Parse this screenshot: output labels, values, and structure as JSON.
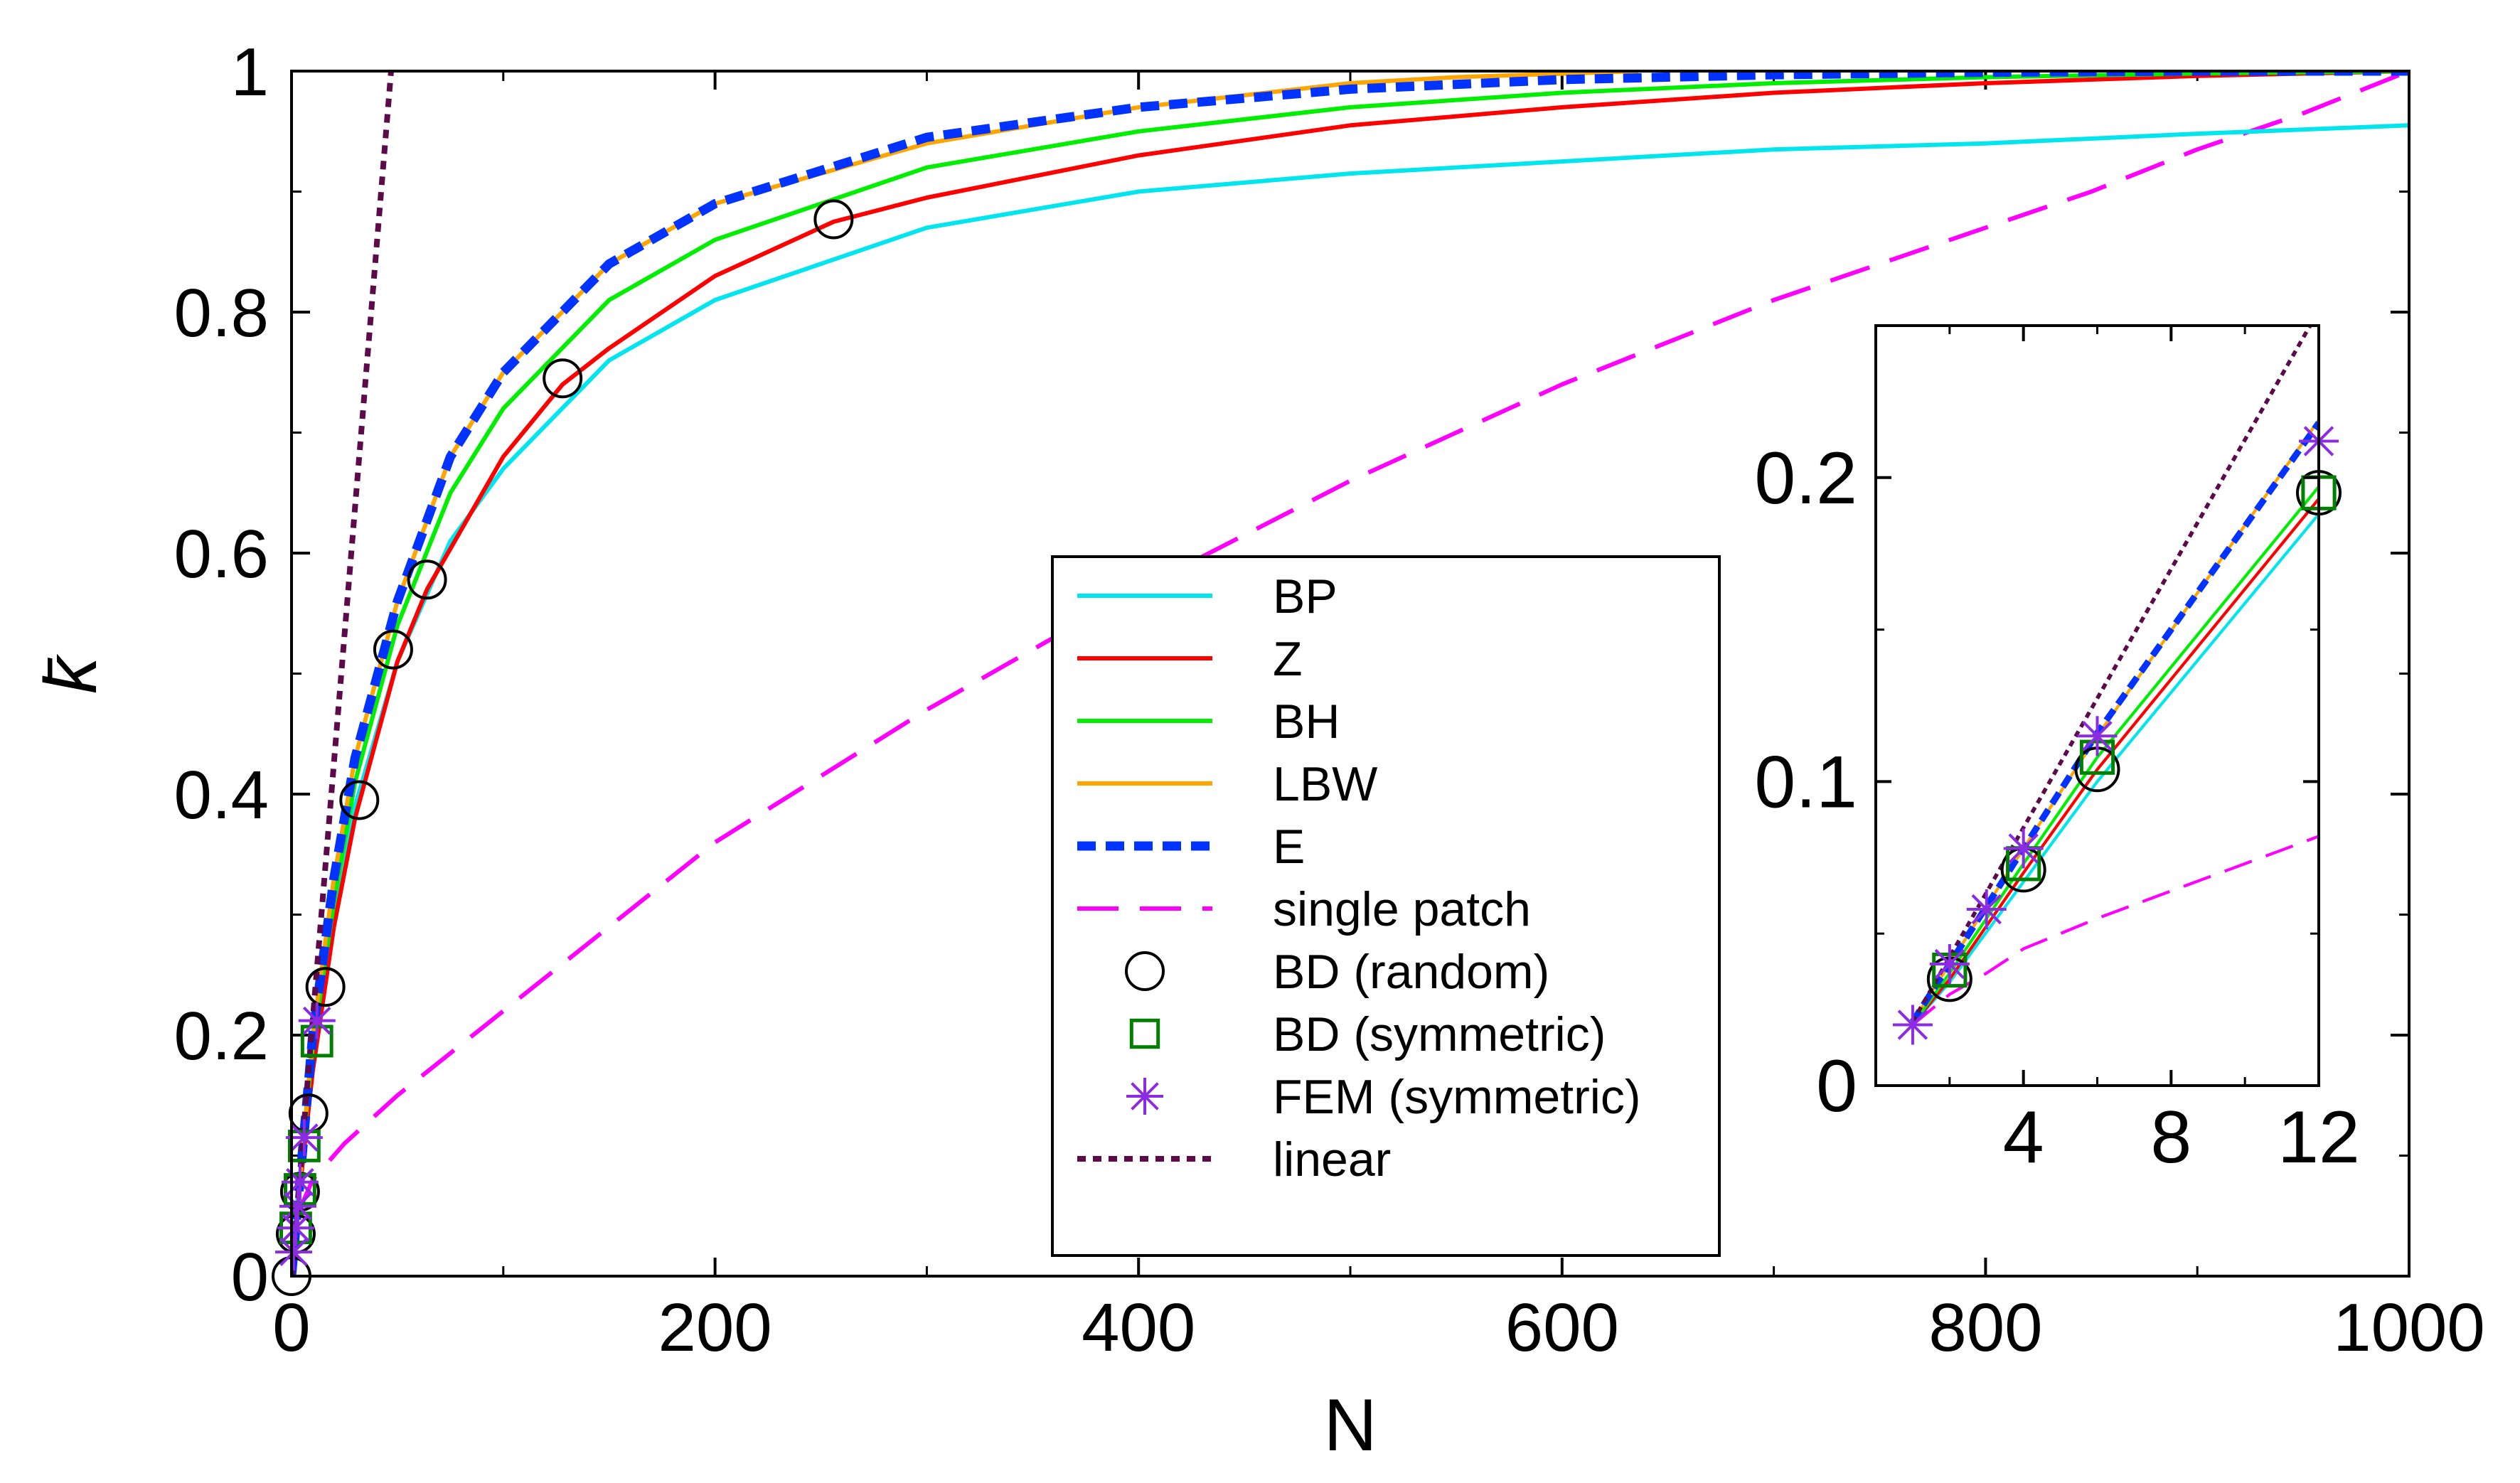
{
  "chart_data": [
    {
      "id": "main",
      "type": "line",
      "xlabel": "N",
      "ylabel": "k̄",
      "xlim": [
        0,
        1000
      ],
      "ylim": [
        0,
        1
      ],
      "xticks": [
        0,
        200,
        400,
        600,
        800,
        1000
      ],
      "yticks": [
        0,
        0.2,
        0.4,
        0.6,
        0.8,
        1
      ],
      "xtick_labels": [
        "0",
        "200",
        "400",
        "600",
        "800",
        "1000"
      ],
      "ytick_labels": [
        "0",
        "0.2",
        "0.4",
        "0.6",
        "0.8",
        "1"
      ],
      "legend_position": "lower-center",
      "series": [
        {
          "name": "BP",
          "style": "solid",
          "color": "#00e5ee",
          "x": [
            0,
            2,
            5,
            10,
            20,
            30,
            50,
            75,
            100,
            150,
            200,
            300,
            400,
            500,
            600,
            700,
            800,
            900,
            1000
          ],
          "y": [
            0,
            0.05,
            0.1,
            0.18,
            0.3,
            0.39,
            0.51,
            0.61,
            0.67,
            0.76,
            0.81,
            0.87,
            0.9,
            0.915,
            0.925,
            0.935,
            0.94,
            0.948,
            0.955
          ]
        },
        {
          "name": "Z",
          "style": "solid",
          "color": "#ff0000",
          "x": [
            0,
            2,
            5,
            10,
            20,
            30,
            50,
            64,
            100,
            128,
            150,
            200,
            256,
            300,
            400,
            500,
            600,
            700,
            800,
            900,
            1000
          ],
          "y": [
            0,
            0.04,
            0.09,
            0.17,
            0.29,
            0.38,
            0.51,
            0.57,
            0.68,
            0.74,
            0.77,
            0.83,
            0.875,
            0.895,
            0.93,
            0.955,
            0.97,
            0.982,
            0.99,
            0.996,
            1.0
          ]
        },
        {
          "name": "BH",
          "style": "solid",
          "color": "#00ee00",
          "x": [
            0,
            2,
            5,
            10,
            20,
            30,
            50,
            75,
            100,
            150,
            200,
            300,
            400,
            500,
            600,
            700,
            800,
            900,
            1000
          ],
          "y": [
            0,
            0.04,
            0.1,
            0.19,
            0.31,
            0.41,
            0.54,
            0.65,
            0.72,
            0.81,
            0.86,
            0.92,
            0.95,
            0.97,
            0.982,
            0.99,
            0.995,
            0.998,
            1.0
          ]
        },
        {
          "name": "LBW",
          "style": "solid",
          "color": "#ffa500",
          "x": [
            0,
            2,
            5,
            10,
            20,
            30,
            50,
            75,
            100,
            150,
            200,
            300,
            400,
            500,
            550,
            636
          ],
          "y": [
            0,
            0.04,
            0.1,
            0.2,
            0.33,
            0.43,
            0.56,
            0.68,
            0.75,
            0.84,
            0.89,
            0.94,
            0.97,
            0.99,
            0.995,
            1.0
          ]
        },
        {
          "name": "E",
          "style": "dashed",
          "color": "#0033ff",
          "x": [
            0,
            2,
            5,
            10,
            20,
            30,
            50,
            75,
            100,
            150,
            200,
            300,
            400,
            500,
            600,
            700,
            800,
            900,
            1000
          ],
          "y": [
            0,
            0.04,
            0.1,
            0.2,
            0.33,
            0.43,
            0.56,
            0.68,
            0.75,
            0.84,
            0.89,
            0.945,
            0.97,
            0.985,
            0.993,
            0.997,
            0.999,
            1.0,
            1.0
          ]
        },
        {
          "name": "single patch",
          "style": "longdash",
          "color": "#ff00ff",
          "x": [
            0,
            2,
            5,
            10,
            25,
            50,
            100,
            150,
            200,
            300,
            400,
            500,
            600,
            700,
            800,
            850,
            900,
            950,
            1000
          ],
          "y": [
            0.0,
            0.03,
            0.06,
            0.08,
            0.11,
            0.15,
            0.22,
            0.29,
            0.36,
            0.47,
            0.57,
            0.66,
            0.74,
            0.81,
            0.87,
            0.9,
            0.935,
            0.965,
            1.0
          ]
        },
        {
          "name": "BD (random)",
          "style": "marker",
          "marker": "circle",
          "color": "#000000",
          "x": [
            0,
            2,
            4,
            8,
            16,
            32,
            48,
            64,
            128,
            256
          ],
          "y": [
            0.0,
            0.035,
            0.07,
            0.135,
            0.24,
            0.395,
            0.52,
            0.578,
            0.745,
            0.877
          ]
        },
        {
          "name": "BD (symmetric)",
          "style": "marker",
          "marker": "square",
          "color": "#007f00",
          "x": [
            2,
            4,
            6,
            12
          ],
          "y": [
            0.04,
            0.072,
            0.108,
            0.195
          ]
        },
        {
          "name": "FEM (symmetric)",
          "style": "marker",
          "marker": "star",
          "color": "#8b2be2",
          "x": [
            1,
            2,
            3,
            4,
            6,
            12
          ],
          "y": [
            0.02,
            0.04,
            0.058,
            0.078,
            0.115,
            0.212
          ]
        },
        {
          "name": "linear",
          "style": "dotted",
          "color": "#5c0a4a",
          "x": [
            0,
            47
          ],
          "y": [
            0,
            1.0
          ]
        }
      ]
    },
    {
      "id": "inset",
      "type": "line",
      "xlim": [
        0,
        12
      ],
      "ylim": [
        0,
        0.25
      ],
      "xticks": [
        4,
        8,
        12
      ],
      "yticks": [
        0,
        0.1,
        0.2
      ],
      "xtick_labels": [
        "4",
        "8",
        "12"
      ],
      "ytick_labels": [
        "0",
        "0.1",
        "0.2"
      ],
      "series": [
        {
          "name": "BP",
          "x": [
            1,
            2,
            4,
            6,
            12
          ],
          "y": [
            0.02,
            0.034,
            0.067,
            0.1,
            0.188
          ]
        },
        {
          "name": "Z",
          "x": [
            1,
            2,
            4,
            6,
            12
          ],
          "y": [
            0.02,
            0.035,
            0.07,
            0.104,
            0.193
          ]
        },
        {
          "name": "BH",
          "x": [
            1,
            2,
            4,
            6,
            12
          ],
          "y": [
            0.02,
            0.037,
            0.073,
            0.108,
            0.197
          ]
        },
        {
          "name": "LBW",
          "x": [
            1,
            2,
            4,
            6,
            12
          ],
          "y": [
            0.021,
            0.04,
            0.078,
            0.115,
            0.219
          ]
        },
        {
          "name": "E",
          "x": [
            1,
            2,
            4,
            6,
            12
          ],
          "y": [
            0.021,
            0.04,
            0.078,
            0.116,
            0.218
          ]
        },
        {
          "name": "single patch",
          "x": [
            1,
            2,
            3,
            4,
            6,
            8,
            10,
            12
          ],
          "y": [
            0.02,
            0.03,
            0.037,
            0.045,
            0.055,
            0.064,
            0.073,
            0.082
          ]
        },
        {
          "name": "BD (random)",
          "x": [
            2,
            4,
            6,
            12
          ],
          "y": [
            0.035,
            0.071,
            0.104,
            0.195
          ]
        },
        {
          "name": "BD (symmetric)",
          "x": [
            2,
            4,
            6,
            12
          ],
          "y": [
            0.038,
            0.073,
            0.108,
            0.195
          ]
        },
        {
          "name": "FEM (symmetric)",
          "x": [
            1,
            2,
            3,
            4,
            6,
            12
          ],
          "y": [
            0.02,
            0.04,
            0.058,
            0.078,
            0.115,
            0.212
          ]
        },
        {
          "name": "linear",
          "x": [
            1,
            12
          ],
          "y": [
            0.021,
            0.255
          ]
        }
      ]
    }
  ]
}
